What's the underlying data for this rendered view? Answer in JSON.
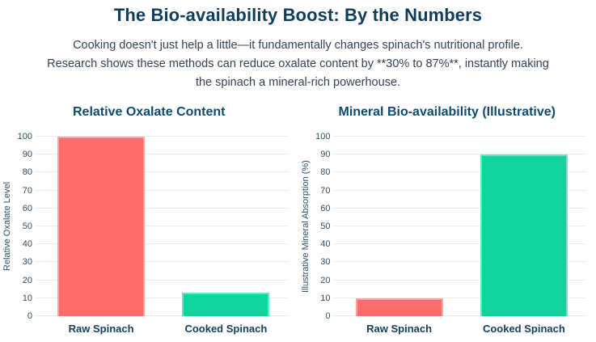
{
  "header": {
    "title": "The Bio-availability Boost: By the Numbers",
    "description_lines": [
      "Cooking doesn't just help a little—it fundamentally changes spinach's nutritional profile.",
      "Research shows these methods can reduce oxalate content by **30% to 87%**, instantly making",
      "the spinach a mineral-rich powerhouse."
    ]
  },
  "colors": {
    "background": "#ffffff",
    "title": "#0f3d5c",
    "chart_title": "#0c4a6e",
    "body_text": "#334355",
    "axis_text": "#2d4f66",
    "category_text": "#173f57",
    "grid": "#ebebf0",
    "raw_bar": "#ff6b6b",
    "cooked_bar": "#10d39f"
  },
  "chart_data": [
    {
      "type": "bar",
      "title": "Relative Oxalate Content",
      "categories": [
        "Raw Spinach",
        "Cooked Spinach"
      ],
      "values": [
        100,
        13
      ],
      "colors": [
        "#ff6b6b",
        "#10d39f"
      ],
      "xlabel": "",
      "ylabel": "Relative Oxalate Level",
      "ylim": [
        0,
        100
      ],
      "ytick_step": 10,
      "grid": true,
      "legend": "none"
    },
    {
      "type": "bar",
      "title": "Mineral Bio-availability (Illustrative)",
      "categories": [
        "Raw Spinach",
        "Cooked Spinach"
      ],
      "values": [
        10,
        90
      ],
      "colors": [
        "#ff6b6b",
        "#10d39f"
      ],
      "xlabel": "",
      "ylabel": "Illustrative Mineral Absorption (%)",
      "ylim": [
        0,
        100
      ],
      "ytick_step": 10,
      "grid": true,
      "legend": "none"
    }
  ]
}
